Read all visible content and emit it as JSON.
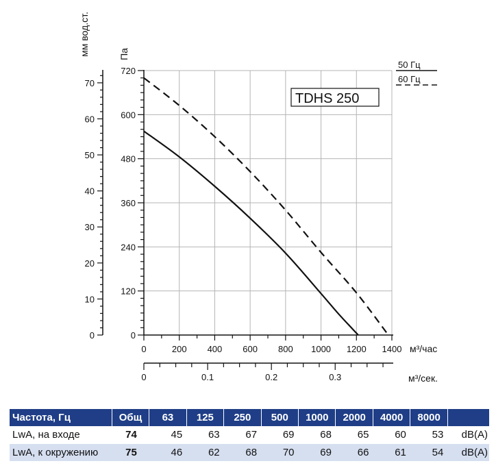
{
  "chart_data": {
    "type": "line",
    "title": "TDHS 250",
    "x": {
      "label": "м³/час",
      "min": 0,
      "max": 1400,
      "ticks": [
        0,
        200,
        400,
        600,
        800,
        1000,
        1200,
        1400
      ],
      "tick_labels": [
        "0",
        "200",
        "400",
        "600",
        "800",
        "1000",
        "1200",
        "1400"
      ]
    },
    "x2": {
      "label": "м³/сек.",
      "min": 0,
      "max": 0.3889,
      "ticks": [
        0,
        0.1,
        0.2,
        0.3
      ],
      "tick_labels": [
        "0",
        "0.1",
        "0.2",
        "0.3"
      ]
    },
    "y": {
      "label": "Па",
      "min": 0,
      "max": 720,
      "ticks": [
        0,
        120,
        240,
        360,
        480,
        600,
        720
      ],
      "tick_labels": [
        "0",
        "120",
        "240",
        "360",
        "480",
        "600",
        "720"
      ]
    },
    "y2": {
      "label": "мм вод.ст.",
      "min": 0,
      "max": 73.4,
      "ticks": [
        0,
        10,
        20,
        30,
        40,
        50,
        60,
        70
      ],
      "tick_labels": [
        "0",
        "10",
        "20",
        "30",
        "40",
        "50",
        "60",
        "70"
      ]
    },
    "grid": true,
    "legend_position": "top-right",
    "series": [
      {
        "name": "50 Гц",
        "style": "solid",
        "x": [
          0,
          200,
          400,
          600,
          800,
          1000,
          1100,
          1210
        ],
        "y": [
          555,
          485,
          405,
          318,
          223,
          113,
          57,
          0
        ]
      },
      {
        "name": "60 Гц",
        "style": "dashed",
        "x": [
          0,
          200,
          400,
          600,
          800,
          1000,
          1200,
          1380
        ],
        "y": [
          700,
          625,
          540,
          445,
          340,
          225,
          115,
          0
        ]
      }
    ]
  },
  "noise_table": {
    "header": {
      "label": "Частота, Гц",
      "total": "Общ",
      "bands": [
        "63",
        "125",
        "250",
        "500",
        "1000",
        "2000",
        "4000",
        "8000"
      ]
    },
    "rows": [
      {
        "label": "LwA, на входе",
        "total": "74",
        "values": [
          "45",
          "63",
          "67",
          "69",
          "68",
          "65",
          "60",
          "53"
        ],
        "unit": "dB(A)"
      },
      {
        "label": "LwA, к окружению",
        "total": "75",
        "values": [
          "46",
          "62",
          "68",
          "70",
          "69",
          "66",
          "61",
          "54"
        ],
        "unit": "dB(A)"
      }
    ]
  },
  "colors": {
    "table_header": "#1f3e87",
    "table_stripe": "#d6dff0",
    "curve": "#111111",
    "grid": "#b4b4b4"
  }
}
